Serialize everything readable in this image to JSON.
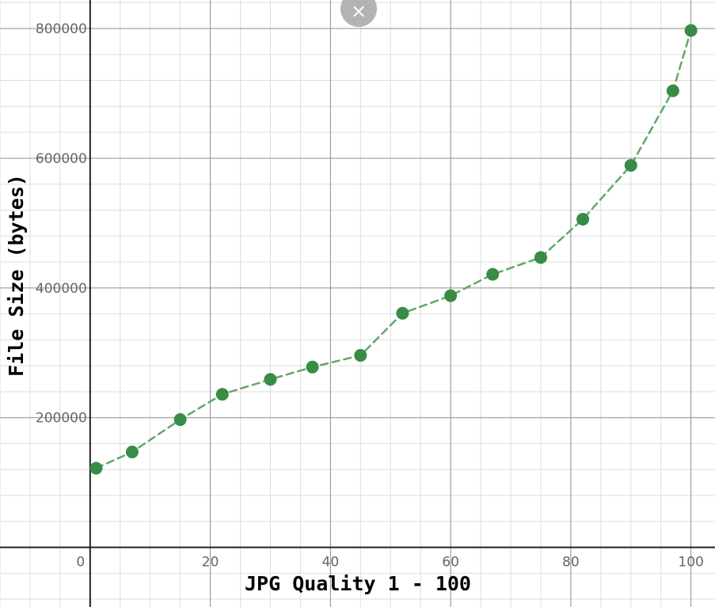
{
  "chart_data": {
    "type": "scatter",
    "title": "",
    "xlabel": "JPG Quality 1 - 100",
    "ylabel": "File Size (bytes)",
    "xlim": [
      -15,
      104
    ],
    "ylim": [
      -92000,
      844000
    ],
    "x_ticks": [
      0,
      20,
      40,
      60,
      80,
      100
    ],
    "x_tick_labels": [
      "0",
      "20",
      "40",
      "60",
      "80",
      "100"
    ],
    "y_ticks": [
      200000,
      400000,
      600000,
      800000
    ],
    "y_tick_labels": [
      "200000",
      "400000",
      "600000",
      "800000"
    ],
    "grid": true,
    "connect_points": true,
    "line_style": "dashed",
    "series_color": "#388c46",
    "line_color": "#5fa86b",
    "series": [
      {
        "x": [
          1,
          7,
          15,
          22,
          30,
          37,
          45,
          52,
          60,
          67,
          75,
          82,
          90,
          97,
          100
        ],
        "values": [
          122000,
          147000,
          197000,
          236000,
          259000,
          278000,
          296000,
          361000,
          388000,
          421000,
          447000,
          506000,
          589000,
          704000,
          797000
        ]
      }
    ]
  },
  "controls": {
    "close_glyph": "×",
    "close_icon": "close-icon"
  }
}
